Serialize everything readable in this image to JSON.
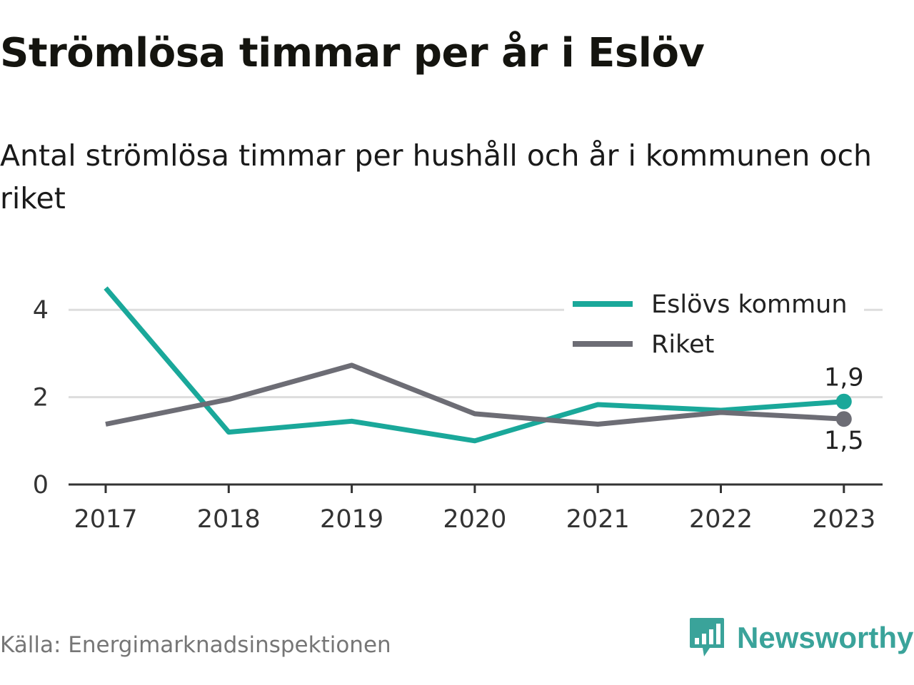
{
  "title": "Strömlösa timmar per år i Eslöv",
  "subtitle": "Antal strömlösa timmar per hushåll och år i kommunen och riket",
  "source": "Källa: Energimarknadsinspektionen",
  "brand": {
    "name": "Newsworthy",
    "icon": "newsworthy-logo-icon"
  },
  "colors": {
    "eslov": "#1aa89a",
    "riket": "#6d6d75",
    "grid": "#dddddd",
    "axis": "#333333",
    "brand": "#3aa39a"
  },
  "chart_data": {
    "type": "line",
    "categories": [
      "2017",
      "2018",
      "2019",
      "2020",
      "2021",
      "2022",
      "2023"
    ],
    "series": [
      {
        "name": "Eslövs kommun",
        "values": [
          4.5,
          1.2,
          1.45,
          1.0,
          1.83,
          1.7,
          1.9
        ],
        "end_label": "1,9"
      },
      {
        "name": "Riket",
        "values": [
          1.38,
          1.95,
          2.73,
          1.62,
          1.38,
          1.65,
          1.5
        ],
        "end_label": "1,5"
      }
    ],
    "y_ticks": [
      "0",
      "2",
      "4"
    ],
    "ylim": [
      0,
      4.5
    ],
    "grid": true,
    "legend_position": "top-right"
  }
}
